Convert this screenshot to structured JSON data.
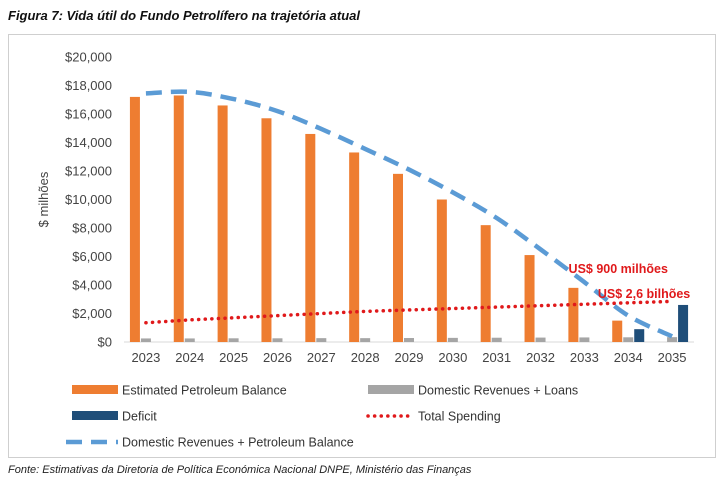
{
  "figure_title": "Figura 7: Vida útil do Fundo Petrolífero na trajetória atual",
  "source": "Fonte: Estimativas da Diretoria de Política Económica Nacional DNPE, Ministério das Finanças",
  "chart_data": {
    "type": "bar",
    "ylabel": "$ milhões",
    "ylim": [
      0,
      20000
    ],
    "yticks": [
      0,
      2000,
      4000,
      6000,
      8000,
      10000,
      12000,
      14000,
      16000,
      18000,
      20000
    ],
    "ytick_labels": [
      "$0",
      "$2,000",
      "$4,000",
      "$6,000",
      "$8,000",
      "$10,000",
      "$12,000",
      "$14,000",
      "$16,000",
      "$18,000",
      "$20,000"
    ],
    "categories": [
      "2023",
      "2024",
      "2025",
      "2026",
      "2027",
      "2028",
      "2029",
      "2030",
      "2031",
      "2032",
      "2033",
      "2034",
      "2035"
    ],
    "grid": false,
    "legend_position": "bottom",
    "series": [
      {
        "name": "Estimated Petroleum Balance",
        "kind": "bar",
        "color": "#ee7d31",
        "values": [
          17200,
          17300,
          16600,
          15700,
          14600,
          13300,
          11800,
          10000,
          8200,
          6100,
          3800,
          1500,
          0
        ]
      },
      {
        "name": "Domestic Revenues + Loans",
        "kind": "bar",
        "color": "#a5a5a5",
        "values": [
          250,
          250,
          260,
          260,
          270,
          270,
          280,
          290,
          300,
          310,
          320,
          330,
          340
        ]
      },
      {
        "name": "Deficit",
        "kind": "bar",
        "color": "#1f4e79",
        "values": [
          0,
          0,
          0,
          0,
          0,
          0,
          0,
          0,
          0,
          0,
          0,
          900,
          2600
        ]
      },
      {
        "name": "Total Spending",
        "kind": "line-dotted",
        "color": "#e0191b",
        "values": [
          1350,
          1550,
          1700,
          1850,
          2000,
          2150,
          2250,
          2350,
          2450,
          2550,
          2650,
          2750,
          2850
        ]
      },
      {
        "name": "Domestic Revenues + Petroleum Balance",
        "kind": "line-dashed",
        "color": "#5b9bd5",
        "values": [
          17450,
          17550,
          17050,
          16200,
          14950,
          13550,
          12100,
          10500,
          8700,
          6500,
          4200,
          1850,
          400
        ]
      }
    ],
    "annotations": [
      {
        "text": "US$ 900 milhões",
        "category": "2034"
      },
      {
        "text": "US$ 2,6 bilhões",
        "category": "2035"
      }
    ]
  }
}
